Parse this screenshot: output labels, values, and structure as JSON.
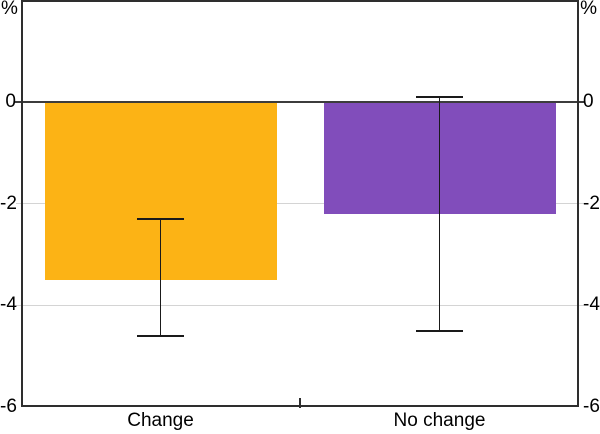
{
  "chart_data": {
    "type": "bar",
    "title": "",
    "xlabel": "",
    "ylabel": "%",
    "unit_left": "%",
    "unit_right": "%",
    "categories": [
      "Change",
      "No change"
    ],
    "values": [
      -3.5,
      -2.2
    ],
    "error_bars": [
      {
        "category": "Change",
        "low": -4.6,
        "high": -2.3
      },
      {
        "category": "No change",
        "low": -4.5,
        "high": 0.1
      }
    ],
    "ylim": [
      -6,
      2
    ],
    "yticks": [
      0,
      -2,
      -4,
      -6
    ],
    "gridline_values": [
      -2,
      -4
    ],
    "zero_line_value": 0,
    "bar_colors": [
      "#FCB315",
      "#814DBB"
    ],
    "grid": "horizontal-light",
    "legend_position": "none",
    "colors": {
      "grid": "#D4D4D4",
      "zero_line": "#3C3C3C",
      "axis_border": "#2E2E2E",
      "error_bar": "#1A1A1A",
      "text": "#000000",
      "background": "#FFFFFF"
    }
  }
}
